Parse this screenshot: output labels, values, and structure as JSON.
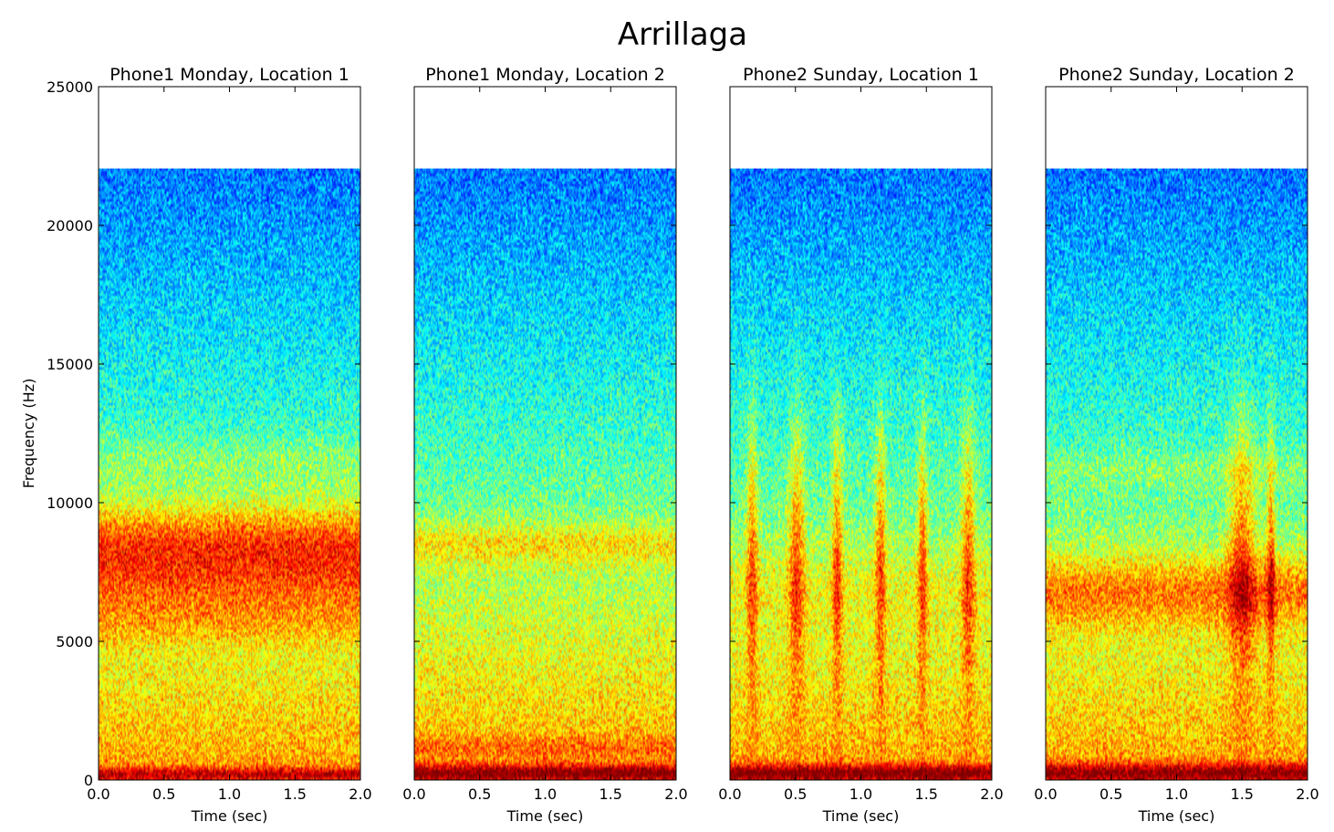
{
  "figure": {
    "title": "Arrillaga"
  },
  "chart_data": [
    {
      "type": "heatmap",
      "title": "Phone1 Monday, Location 1",
      "xlabel": "Time (sec)",
      "ylabel": "Frequency (Hz)",
      "xlim": [
        0,
        2
      ],
      "ylim": [
        0,
        25000
      ],
      "xticks": [
        "0.0",
        "0.5",
        "1.0",
        "1.5",
        "2.0"
      ],
      "yticks": [
        "0",
        "5000",
        "10000",
        "15000",
        "20000",
        "25000"
      ],
      "fmax": 22050,
      "colormap": "jet",
      "bands": [
        {
          "f": 8500,
          "w": 1500,
          "a": 0.28
        },
        {
          "f": 6800,
          "w": 1400,
          "a": 0.14
        },
        {
          "f": 5600,
          "w": 800,
          "a": 0.06
        },
        {
          "f": 11500,
          "w": 900,
          "a": 0.06
        },
        {
          "f": 200,
          "w": 250,
          "a": 0.22
        }
      ],
      "events": []
    },
    {
      "type": "heatmap",
      "title": "Phone1 Monday, Location 2",
      "xlabel": "Time (sec)",
      "ylabel": "",
      "xlim": [
        0,
        2
      ],
      "ylim": [
        0,
        25000
      ],
      "xticks": [
        "0.0",
        "0.5",
        "1.0",
        "1.5",
        "2.0"
      ],
      "yticks": [],
      "fmax": 22050,
      "colormap": "jet",
      "bands": [
        {
          "f": 8500,
          "w": 800,
          "a": 0.13
        },
        {
          "f": 250,
          "w": 300,
          "a": 0.3
        },
        {
          "f": 1200,
          "w": 400,
          "a": 0.08
        }
      ],
      "events": []
    },
    {
      "type": "heatmap",
      "title": "Phone2 Sunday, Location 1",
      "xlabel": "Time (sec)",
      "ylabel": "",
      "xlim": [
        0,
        2
      ],
      "ylim": [
        0,
        25000
      ],
      "xticks": [
        "0.0",
        "0.5",
        "1.0",
        "1.5",
        "2.0"
      ],
      "yticks": [],
      "fmax": 22050,
      "colormap": "jet",
      "bands": [
        {
          "f": 250,
          "w": 300,
          "a": 0.3
        },
        {
          "f": 7000,
          "w": 1500,
          "a": 0.06
        }
      ],
      "events": [
        {
          "t": 0.17,
          "w": 0.04
        },
        {
          "t": 0.51,
          "w": 0.06
        },
        {
          "t": 0.82,
          "w": 0.04
        },
        {
          "t": 1.15,
          "w": 0.04
        },
        {
          "t": 1.47,
          "w": 0.035
        },
        {
          "t": 1.82,
          "w": 0.05
        }
      ]
    },
    {
      "type": "heatmap",
      "title": "Phone2 Sunday, Location 2",
      "xlabel": "Time (sec)",
      "ylabel": "",
      "xlim": [
        0,
        2
      ],
      "ylim": [
        0,
        25000
      ],
      "xticks": [
        "0.0",
        "0.5",
        "1.0",
        "1.5",
        "2.0"
      ],
      "yticks": [],
      "fmax": 22050,
      "colormap": "jet",
      "bands": [
        {
          "f": 6800,
          "w": 1300,
          "a": 0.2
        },
        {
          "f": 250,
          "w": 350,
          "a": 0.28
        },
        {
          "f": 11200,
          "w": 700,
          "a": 0.05
        }
      ],
      "events": [
        {
          "t": 1.5,
          "w": 0.1
        },
        {
          "t": 1.72,
          "w": 0.03
        }
      ]
    }
  ]
}
